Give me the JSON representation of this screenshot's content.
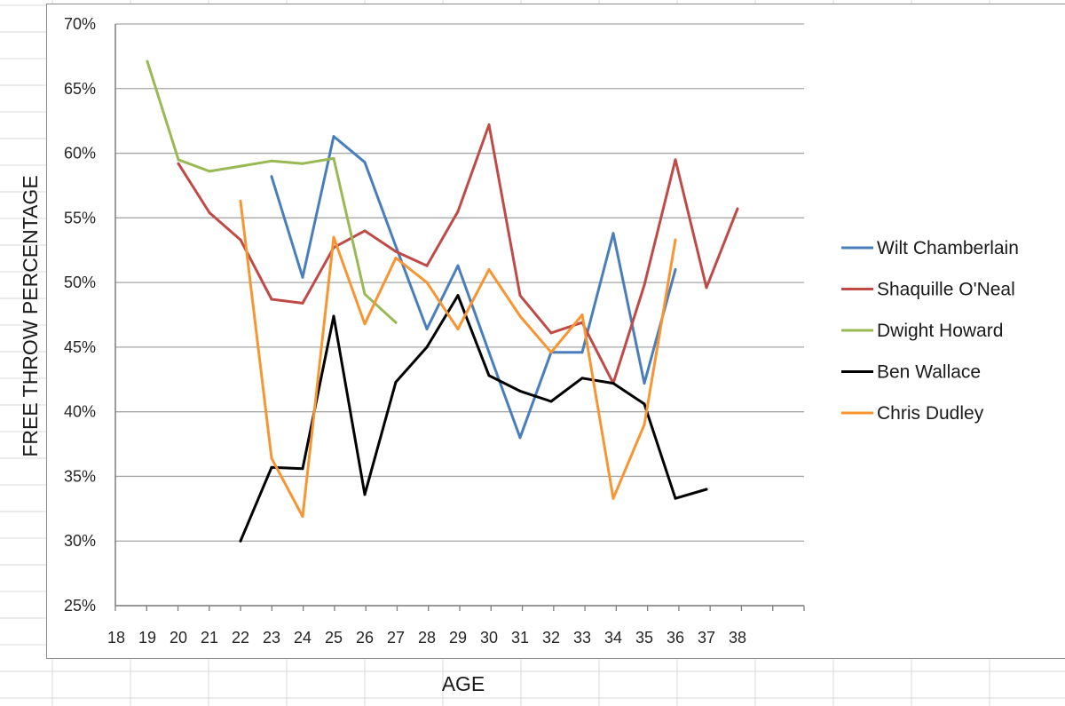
{
  "colors": {
    "Wilt Chamberlain": "#4a7ebb",
    "Shaquille O'Neal": "#be4b48",
    "Dwight Howard": "#98b954",
    "Ben Wallace": "#000000",
    "Chris Dudley": "#f79533"
  },
  "chart_data": {
    "type": "line",
    "title": "",
    "xlabel": "AGE",
    "ylabel": "FREE THROW PERCENTAGE",
    "ylim": [
      0.25,
      0.7
    ],
    "xlim": [
      18,
      38
    ],
    "x_ticks": [
      "18",
      "19",
      "20",
      "21",
      "22",
      "23",
      "24",
      "25",
      "26",
      "27",
      "28",
      "29",
      "30",
      "31",
      "32",
      "33",
      "34",
      "35",
      "36",
      "37",
      "38"
    ],
    "y_ticks": [
      "25%",
      "30%",
      "35%",
      "40%",
      "45%",
      "50%",
      "55%",
      "60%",
      "65%",
      "70%"
    ],
    "grid": "horizontal",
    "legend_position": "right",
    "series": [
      {
        "name": "Wilt Chamberlain",
        "x": [
          23,
          24,
          25,
          26,
          27,
          28,
          29,
          30,
          31,
          32,
          33,
          34,
          35,
          36
        ],
        "values": [
          0.582,
          0.504,
          0.613,
          0.593,
          0.528,
          0.464,
          0.513,
          0.446,
          0.38,
          0.446,
          0.446,
          0.538,
          0.422,
          0.51
        ]
      },
      {
        "name": "Shaquille O'Neal",
        "x": [
          20,
          21,
          22,
          23,
          24,
          25,
          26,
          27,
          28,
          29,
          30,
          31,
          32,
          33,
          34,
          35,
          36,
          37,
          38
        ],
        "values": [
          0.592,
          0.554,
          0.533,
          0.487,
          0.484,
          0.527,
          0.54,
          0.524,
          0.513,
          0.555,
          0.622,
          0.49,
          0.461,
          0.469,
          0.422,
          0.498,
          0.595,
          0.496,
          0.557
        ]
      },
      {
        "name": "Dwight Howard",
        "x": [
          19,
          20,
          21,
          22,
          23,
          24,
          25,
          26,
          27
        ],
        "values": [
          0.671,
          0.595,
          0.586,
          0.59,
          0.594,
          0.592,
          0.596,
          0.491,
          0.469
        ]
      },
      {
        "name": "Ben Wallace",
        "x": [
          22,
          23,
          24,
          25,
          26,
          27,
          28,
          29,
          30,
          31,
          32,
          33,
          34,
          35,
          36,
          37
        ],
        "values": [
          0.3,
          0.357,
          0.356,
          0.474,
          0.336,
          0.423,
          0.45,
          0.49,
          0.428,
          0.416,
          0.408,
          0.426,
          0.422,
          0.406,
          0.333,
          0.34
        ]
      },
      {
        "name": "Chris Dudley",
        "x": [
          22,
          23,
          24,
          25,
          26,
          27,
          28,
          29,
          30,
          31,
          32,
          33,
          34,
          35,
          36
        ],
        "values": [
          0.563,
          0.364,
          0.319,
          0.535,
          0.468,
          0.519,
          0.5,
          0.464,
          0.51,
          0.474,
          0.446,
          0.475,
          0.333,
          0.39,
          0.533
        ]
      }
    ]
  }
}
